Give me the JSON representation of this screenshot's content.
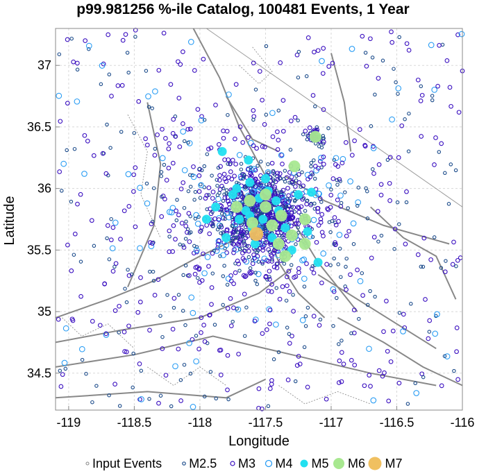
{
  "chart_data": {
    "type": "scatter",
    "title": "p99.981256 %-ile Catalog, 100481 Events, 1 Year",
    "xlabel": "Longitude",
    "ylabel": "Latitude",
    "xlim": [
      -119.1,
      -116.0
    ],
    "ylim": [
      34.2,
      37.3
    ],
    "x_ticks": [
      -119,
      -118.5,
      -118,
      -117.5,
      -117,
      -116.5,
      -116
    ],
    "x_tick_labels": [
      "-119",
      "-118.5",
      "-118",
      "-117.5",
      "-117",
      "-116.5",
      "-116"
    ],
    "y_ticks": [
      34.5,
      35,
      35.5,
      36,
      36.5,
      37
    ],
    "y_tick_labels": [
      "34.5",
      "35",
      "35.5",
      "36",
      "36.5",
      "37"
    ],
    "grid": true,
    "legend_position": "bottom",
    "legend": [
      {
        "label": "Input Events",
        "color": "#888888",
        "marker": "small-open-circle"
      },
      {
        "label": "M2.5",
        "color": "#1a4a8a",
        "marker": "open-circle"
      },
      {
        "label": "M3",
        "color": "#3a0fc0",
        "marker": "open-circle"
      },
      {
        "label": "M4",
        "color": "#2a9df4",
        "marker": "large-open-circle"
      },
      {
        "label": "M5",
        "color": "#22e0f0",
        "marker": "filled-circle"
      },
      {
        "label": "M6",
        "color": "#a8e890",
        "marker": "large-filled-circle"
      },
      {
        "label": "M7",
        "color": "#f0c060",
        "marker": "largest-filled-circle"
      }
    ],
    "cluster_center": {
      "lon": -117.55,
      "lat": 35.8
    },
    "series": [
      {
        "name": "M7",
        "points": [
          [
            -117.57,
            35.63
          ]
        ]
      },
      {
        "name": "M6",
        "points": [
          [
            -117.12,
            36.42
          ],
          [
            -117.28,
            36.18
          ],
          [
            -117.62,
            35.9
          ],
          [
            -117.5,
            35.85
          ],
          [
            -117.38,
            35.78
          ],
          [
            -117.6,
            35.72
          ],
          [
            -117.45,
            35.7
          ],
          [
            -117.3,
            35.62
          ],
          [
            -117.2,
            35.55
          ],
          [
            -117.4,
            35.55
          ],
          [
            -117.35,
            35.45
          ],
          [
            -117.2,
            35.75
          ],
          [
            -117.72,
            35.85
          ],
          [
            -117.5,
            35.95
          ]
        ]
      },
      {
        "name": "M5",
        "points": [
          [
            -117.83,
            36.3
          ],
          [
            -117.63,
            36.23
          ],
          [
            -117.15,
            35.97
          ],
          [
            -117.72,
            36.0
          ],
          [
            -117.62,
            36.05
          ],
          [
            -117.48,
            35.98
          ],
          [
            -117.42,
            35.9
          ],
          [
            -117.55,
            35.92
          ],
          [
            -117.65,
            35.82
          ],
          [
            -117.52,
            35.75
          ],
          [
            -117.6,
            35.68
          ],
          [
            -117.7,
            35.75
          ],
          [
            -117.35,
            35.68
          ],
          [
            -117.45,
            35.6
          ],
          [
            -117.3,
            35.5
          ],
          [
            -117.95,
            35.75
          ],
          [
            -117.8,
            35.6
          ],
          [
            -117.25,
            35.95
          ],
          [
            -117.5,
            36.08
          ],
          [
            -117.75,
            35.95
          ],
          [
            -117.4,
            35.82
          ],
          [
            -117.58,
            35.55
          ],
          [
            -117.18,
            35.65
          ],
          [
            -117.62,
            35.78
          ],
          [
            -117.88,
            35.85
          ],
          [
            -117.1,
            35.4
          ]
        ]
      }
    ]
  }
}
